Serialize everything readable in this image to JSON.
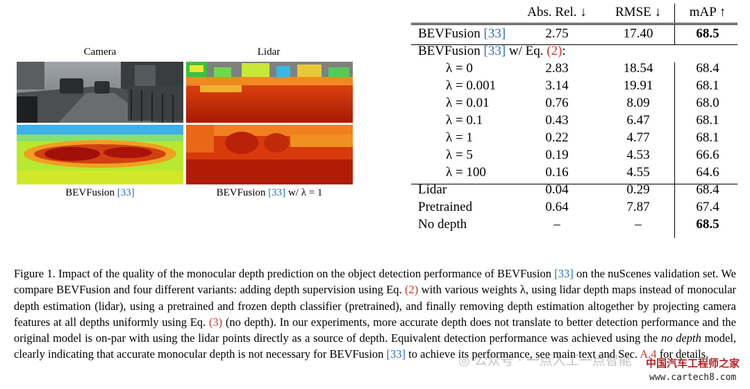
{
  "figure": {
    "camera_label": "Camera",
    "lidar_label": "Lidar",
    "bevfusion_label": "BEVFusion",
    "bevfusion_cite": "[33]",
    "bevfusion_lambda_label_prefix": "BEVFusion",
    "bevfusion_lambda_label_suffix": "w/ λ = 1"
  },
  "table": {
    "headers": {
      "name": "",
      "abs_rel": "Abs. Rel. ↓",
      "rmse": "RMSE ↓",
      "map": "mAP ↑"
    },
    "baseline": {
      "name": "BEVFusion",
      "cite": "[33]",
      "abs_rel": "2.75",
      "rmse": "17.40",
      "map": "68.5"
    },
    "variant_heading": {
      "prefix": "BEVFusion",
      "cite": "[33]",
      "middle": "w/ Eq.",
      "eq": "(2)",
      "suffix": ":"
    },
    "lambda_rows": [
      {
        "name": "λ = 0",
        "abs_rel": "2.83",
        "rmse": "18.54",
        "map": "68.4"
      },
      {
        "name": "λ = 0.001",
        "abs_rel": "3.14",
        "rmse": "19.91",
        "map": "68.1"
      },
      {
        "name": "λ = 0.01",
        "abs_rel": "0.76",
        "rmse": "8.09",
        "map": "68.0"
      },
      {
        "name": "λ = 0.1",
        "abs_rel": "0.43",
        "rmse": "6.47",
        "map": "68.1"
      },
      {
        "name": "λ = 1",
        "abs_rel": "0.22",
        "rmse": "4.77",
        "map": "68.1"
      },
      {
        "name": "λ = 5",
        "abs_rel": "0.19",
        "rmse": "4.53",
        "map": "66.6"
      },
      {
        "name": "λ = 100",
        "abs_rel": "0.16",
        "rmse": "4.55",
        "map": "64.6"
      }
    ],
    "other_rows": [
      {
        "name": "Lidar",
        "abs_rel": "0.04",
        "rmse": "0.29",
        "map": "68.4"
      },
      {
        "name": "Pretrained",
        "abs_rel": "0.64",
        "rmse": "7.87",
        "map": "67.4"
      },
      {
        "name": "No depth",
        "abs_rel": "–",
        "rmse": "–",
        "map": "68.5"
      }
    ]
  },
  "caption": {
    "s1": "Figure 1. Impact of the quality of the monocular depth prediction on the object detection performance of BEVFusion",
    "cite1": "[33]",
    "s2": "on the nuScenes validation set. We compare BEVFusion and four different variants: adding depth supervision using Eq.",
    "eq2": "(2)",
    "s3": "with various weights λ, using lidar depth maps instead of monocular depth estimation (lidar), using a pretrained and frozen depth classifier (pretrained), and finally removing depth estimation altogether by projecting camera features at all depths uniformly using Eq.",
    "eq3": "(3)",
    "s4": "(no depth). In our experiments, more accurate depth does not translate to better detection performance and the original model is on-par with using the lidar points directly as a source of depth. Equivalent detection performance was achieved using the",
    "em": "no depth",
    "s5": "model, clearly indicating that accurate monocular depth is not necessary for BEVFusion",
    "cite2": "[33]",
    "s6": "to achieve its performance, see main text and Sec.",
    "sec": "A.4",
    "s7": "for details."
  },
  "watermark": {
    "text1": "公众号 · 一点人工一点智能",
    "text2": "中国汽车工程师之家",
    "url": "www.cartech8.com"
  },
  "colors": {
    "cite": "#2a6ebb",
    "eqref": "#c0392b"
  }
}
